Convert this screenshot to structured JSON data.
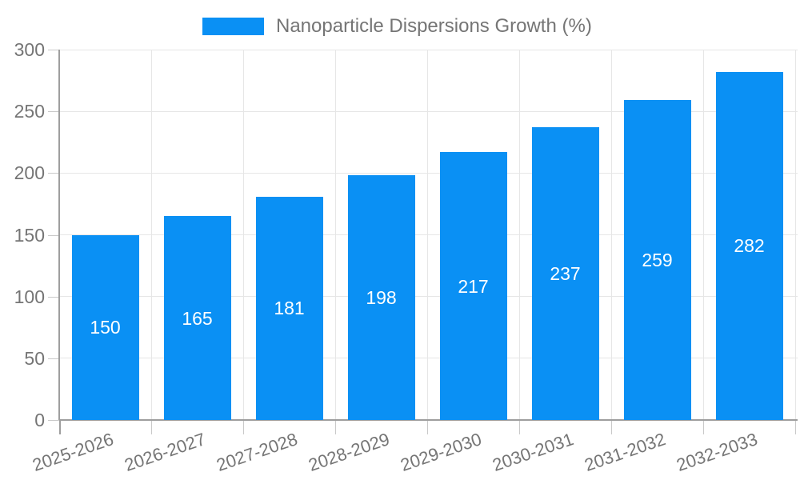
{
  "colors": {
    "bar": "#0a90f4",
    "grid": "#e6e6e6",
    "axis": "#9e9e9e",
    "tick": "#c9c9c9",
    "text": "#757575",
    "bar_label": "#ffffff",
    "background": "#ffffff"
  },
  "chart_data": {
    "type": "bar",
    "title": "",
    "legend": "Nanoparticle Dispersions Growth (%)",
    "legend_position": "top-center",
    "categories": [
      "2025-2026",
      "2026-2027",
      "2027-2028",
      "2028-2029",
      "2029-2030",
      "2030-2031",
      "2031-2032",
      "2032-2033"
    ],
    "values": [
      150,
      165,
      181,
      198,
      217,
      237,
      259,
      282
    ],
    "xlabel": "",
    "ylabel": "",
    "ylim": [
      0,
      300
    ],
    "ytick_step": 50,
    "yticks": [
      0,
      50,
      100,
      150,
      200,
      250,
      300
    ],
    "grid": true,
    "bar_value_labels_shown": true,
    "bar_value_label_position": "inside-center",
    "x_label_rotation_deg": -19
  }
}
